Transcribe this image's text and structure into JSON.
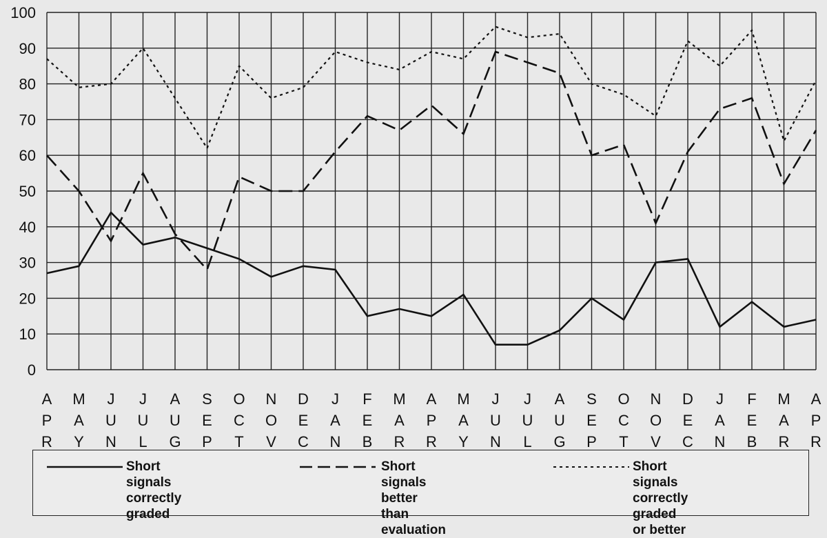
{
  "chart_data": {
    "type": "line",
    "title": "",
    "xlabel": "",
    "ylabel": "",
    "ylim": [
      0,
      100
    ],
    "yticks": [
      0,
      10,
      20,
      30,
      40,
      50,
      60,
      70,
      80,
      90,
      100
    ],
    "grid": true,
    "legend_position": "bottom",
    "categories": [
      [
        "A",
        "P",
        "R"
      ],
      [
        "M",
        "A",
        "Y"
      ],
      [
        "J",
        "U",
        "N"
      ],
      [
        "J",
        "U",
        "L"
      ],
      [
        "A",
        "U",
        "G"
      ],
      [
        "S",
        "E",
        "P"
      ],
      [
        "O",
        "C",
        "T"
      ],
      [
        "N",
        "O",
        "V"
      ],
      [
        "D",
        "E",
        "C"
      ],
      [
        "J",
        "A",
        "N"
      ],
      [
        "F",
        "E",
        "B"
      ],
      [
        "M",
        "A",
        "R"
      ],
      [
        "A",
        "P",
        "R"
      ],
      [
        "M",
        "A",
        "Y"
      ],
      [
        "J",
        "U",
        "N"
      ],
      [
        "J",
        "U",
        "L"
      ],
      [
        "A",
        "U",
        "G"
      ],
      [
        "S",
        "E",
        "P"
      ],
      [
        "O",
        "C",
        "T"
      ],
      [
        "N",
        "O",
        "V"
      ],
      [
        "D",
        "E",
        "C"
      ],
      [
        "J",
        "A",
        "N"
      ],
      [
        "F",
        "E",
        "B"
      ],
      [
        "M",
        "A",
        "R"
      ],
      [
        "A",
        "P",
        "R"
      ]
    ],
    "series": [
      {
        "name": "Short signals correctly graded",
        "style": "solid",
        "values": [
          27,
          29,
          44,
          35,
          37,
          34,
          31,
          26,
          29,
          28,
          15,
          17,
          15,
          21,
          7,
          7,
          11,
          20,
          14,
          30,
          31,
          12,
          19,
          12,
          14
        ]
      },
      {
        "name": "Short signals better than evaluation",
        "style": "dashed",
        "values": [
          60,
          50,
          36,
          55,
          38,
          28,
          54,
          50,
          50,
          61,
          71,
          67,
          74,
          66,
          89,
          86,
          83,
          60,
          63,
          41,
          61,
          73,
          76,
          52,
          67
        ]
      },
      {
        "name": "Short signals correctly graded or better",
        "style": "dotted",
        "values": [
          87,
          79,
          80,
          90,
          76,
          62,
          85,
          76,
          79,
          89,
          86,
          84,
          89,
          87,
          96,
          93,
          94,
          80,
          77,
          71,
          92,
          85,
          95,
          64,
          81
        ]
      }
    ],
    "legend": [
      {
        "lines": [
          "Short signals correctly",
          "graded"
        ]
      },
      {
        "lines": [
          "Short signals better than",
          "evaluation"
        ]
      },
      {
        "lines": [
          "Short signals correctly",
          "graded or better"
        ]
      }
    ],
    "colors": {
      "line": "#111111",
      "grid": "#222222",
      "background": "#e9e9e9"
    }
  }
}
